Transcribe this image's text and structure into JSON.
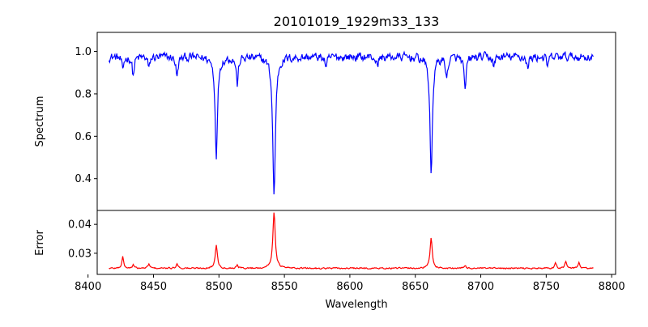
{
  "chart_data": {
    "type": "line",
    "title": "20101019_1929m33_133",
    "xlabel": "Wavelength",
    "x_range": [
      8416,
      8786
    ],
    "xlim": [
      8407,
      8803
    ],
    "xticks": [
      8400,
      8450,
      8500,
      8550,
      8600,
      8650,
      8700,
      8750,
      8800
    ],
    "panels": [
      {
        "name": "spectrum",
        "ylabel": "Spectrum",
        "ylim": [
          0.25,
          1.09
        ],
        "yticks": [
          0.4,
          0.6,
          0.8,
          1.0
        ],
        "ytick_labels": [
          "0.4",
          "0.6",
          "0.8",
          "1.0"
        ],
        "color": "#0000ff",
        "baseline": 0.975,
        "noise_amplitude": 0.032,
        "features": [
          {
            "center": 8426.5,
            "depth": 0.07,
            "width": 0.8
          },
          {
            "center": 8434.5,
            "depth": 0.09,
            "width": 0.9
          },
          {
            "center": 8446.5,
            "depth": 0.06,
            "width": 0.8
          },
          {
            "center": 8468.0,
            "depth": 0.1,
            "width": 0.9
          },
          {
            "center": 8498.0,
            "depth": 0.46,
            "width": 1.1
          },
          {
            "center": 8514.0,
            "depth": 0.13,
            "width": 0.9
          },
          {
            "center": 8542.1,
            "depth": 0.66,
            "width": 1.2
          },
          {
            "center": 8582.0,
            "depth": 0.06,
            "width": 0.8
          },
          {
            "center": 8621.0,
            "depth": 0.05,
            "width": 0.8
          },
          {
            "center": 8662.1,
            "depth": 0.56,
            "width": 1.1
          },
          {
            "center": 8674.0,
            "depth": 0.1,
            "width": 0.9
          },
          {
            "center": 8688.0,
            "depth": 0.17,
            "width": 0.9
          },
          {
            "center": 8710.0,
            "depth": 0.05,
            "width": 0.8
          },
          {
            "center": 8736.0,
            "depth": 0.06,
            "width": 0.8
          },
          {
            "center": 8751.0,
            "depth": 0.05,
            "width": 0.8
          }
        ]
      },
      {
        "name": "error",
        "ylabel": "Error",
        "ylim": [
          0.0227,
          0.0448
        ],
        "yticks": [
          0.03,
          0.04
        ],
        "ytick_labels": [
          "0.03",
          "0.04"
        ],
        "color": "#ff0000",
        "baseline": 0.0248,
        "noise_amplitude": 0.0004,
        "features": [
          {
            "center": 8426.5,
            "height": 0.004,
            "width": 0.8
          },
          {
            "center": 8434.5,
            "height": 0.0012,
            "width": 0.8
          },
          {
            "center": 8446.5,
            "height": 0.0015,
            "width": 0.8
          },
          {
            "center": 8468.0,
            "height": 0.0018,
            "width": 0.8
          },
          {
            "center": 8498.0,
            "height": 0.008,
            "width": 1.0
          },
          {
            "center": 8514.0,
            "height": 0.0012,
            "width": 0.8
          },
          {
            "center": 8542.1,
            "height": 0.0195,
            "width": 1.1
          },
          {
            "center": 8662.1,
            "height": 0.0105,
            "width": 1.0
          },
          {
            "center": 8688.0,
            "height": 0.001,
            "width": 0.8
          },
          {
            "center": 8757.0,
            "height": 0.002,
            "width": 0.8
          },
          {
            "center": 8765.0,
            "height": 0.0025,
            "width": 0.8
          },
          {
            "center": 8775.0,
            "height": 0.002,
            "width": 0.8
          }
        ]
      }
    ]
  }
}
